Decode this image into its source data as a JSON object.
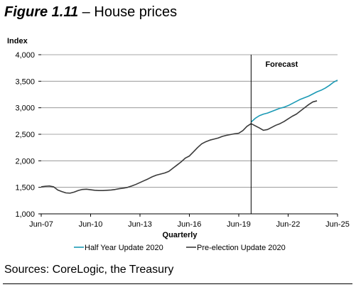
{
  "figure": {
    "number": "Figure 1.11",
    "dash": " – ",
    "title": "House prices"
  },
  "chart_data": {
    "type": "line",
    "ylabel": "Index",
    "xlabel": "Quarterly",
    "ylim": [
      1000,
      4000
    ],
    "yticks": [
      "1,000",
      "1,500",
      "2,000",
      "2,500",
      "3,000",
      "3,500",
      "4,000"
    ],
    "ytick_values": [
      1000,
      1500,
      2000,
      2500,
      3000,
      3500,
      4000
    ],
    "xticks": [
      "Jun-07",
      "Jun-10",
      "Jun-13",
      "Jun-16",
      "Jun-19",
      "Jun-22",
      "Jun-25"
    ],
    "xtick_values": [
      2007.5,
      2010.5,
      2013.5,
      2016.5,
      2019.5,
      2022.5,
      2025.5
    ],
    "xlim": [
      2007.5,
      2025.5
    ],
    "grid": true,
    "legend": "bottom-center",
    "annotation": {
      "text": "Forecast",
      "x": 2020.25
    },
    "series": [
      {
        "name": "Half Year Update 2020",
        "color": "#1b9ab5",
        "points": [
          [
            2020.25,
            2730
          ],
          [
            2020.5,
            2800
          ],
          [
            2020.75,
            2850
          ],
          [
            2021.0,
            2880
          ],
          [
            2021.25,
            2900
          ],
          [
            2021.5,
            2930
          ],
          [
            2021.75,
            2960
          ],
          [
            2022.0,
            2990
          ],
          [
            2022.25,
            3010
          ],
          [
            2022.5,
            3040
          ],
          [
            2022.75,
            3080
          ],
          [
            2023.0,
            3120
          ],
          [
            2023.25,
            3160
          ],
          [
            2023.5,
            3190
          ],
          [
            2023.75,
            3220
          ],
          [
            2024.0,
            3260
          ],
          [
            2024.25,
            3300
          ],
          [
            2024.5,
            3330
          ],
          [
            2024.75,
            3370
          ],
          [
            2025.0,
            3420
          ],
          [
            2025.25,
            3480
          ],
          [
            2025.5,
            3520
          ]
        ]
      },
      {
        "name": "Pre-election Update 2020",
        "color": "#3a3a3a",
        "points": [
          [
            2007.5,
            1510
          ],
          [
            2007.75,
            1520
          ],
          [
            2008.0,
            1525
          ],
          [
            2008.25,
            1510
          ],
          [
            2008.5,
            1450
          ],
          [
            2008.75,
            1420
          ],
          [
            2009.0,
            1395
          ],
          [
            2009.25,
            1390
          ],
          [
            2009.5,
            1410
          ],
          [
            2009.75,
            1440
          ],
          [
            2010.0,
            1460
          ],
          [
            2010.25,
            1465
          ],
          [
            2010.5,
            1455
          ],
          [
            2010.75,
            1445
          ],
          [
            2011.0,
            1440
          ],
          [
            2011.25,
            1440
          ],
          [
            2011.5,
            1445
          ],
          [
            2011.75,
            1450
          ],
          [
            2012.0,
            1460
          ],
          [
            2012.25,
            1475
          ],
          [
            2012.5,
            1485
          ],
          [
            2012.75,
            1500
          ],
          [
            2013.0,
            1525
          ],
          [
            2013.25,
            1555
          ],
          [
            2013.5,
            1590
          ],
          [
            2013.75,
            1625
          ],
          [
            2014.0,
            1660
          ],
          [
            2014.25,
            1700
          ],
          [
            2014.5,
            1730
          ],
          [
            2014.75,
            1750
          ],
          [
            2015.0,
            1770
          ],
          [
            2015.25,
            1800
          ],
          [
            2015.5,
            1860
          ],
          [
            2015.75,
            1920
          ],
          [
            2016.0,
            1980
          ],
          [
            2016.25,
            2050
          ],
          [
            2016.5,
            2090
          ],
          [
            2016.75,
            2170
          ],
          [
            2017.0,
            2250
          ],
          [
            2017.25,
            2320
          ],
          [
            2017.5,
            2360
          ],
          [
            2017.75,
            2390
          ],
          [
            2018.0,
            2410
          ],
          [
            2018.25,
            2430
          ],
          [
            2018.5,
            2460
          ],
          [
            2018.75,
            2480
          ],
          [
            2019.0,
            2495
          ],
          [
            2019.25,
            2510
          ],
          [
            2019.5,
            2520
          ],
          [
            2019.75,
            2570
          ],
          [
            2020.0,
            2650
          ],
          [
            2020.25,
            2700
          ],
          [
            2020.5,
            2660
          ],
          [
            2020.75,
            2620
          ],
          [
            2021.0,
            2575
          ],
          [
            2021.25,
            2590
          ],
          [
            2021.5,
            2630
          ],
          [
            2021.75,
            2670
          ],
          [
            2022.0,
            2700
          ],
          [
            2022.25,
            2740
          ],
          [
            2022.5,
            2790
          ],
          [
            2022.75,
            2840
          ],
          [
            2023.0,
            2880
          ],
          [
            2023.25,
            2940
          ],
          [
            2023.5,
            3000
          ],
          [
            2023.75,
            3060
          ],
          [
            2024.0,
            3110
          ],
          [
            2024.25,
            3130
          ]
        ]
      }
    ]
  },
  "sources": "Sources: CoreLogic, the Treasury"
}
